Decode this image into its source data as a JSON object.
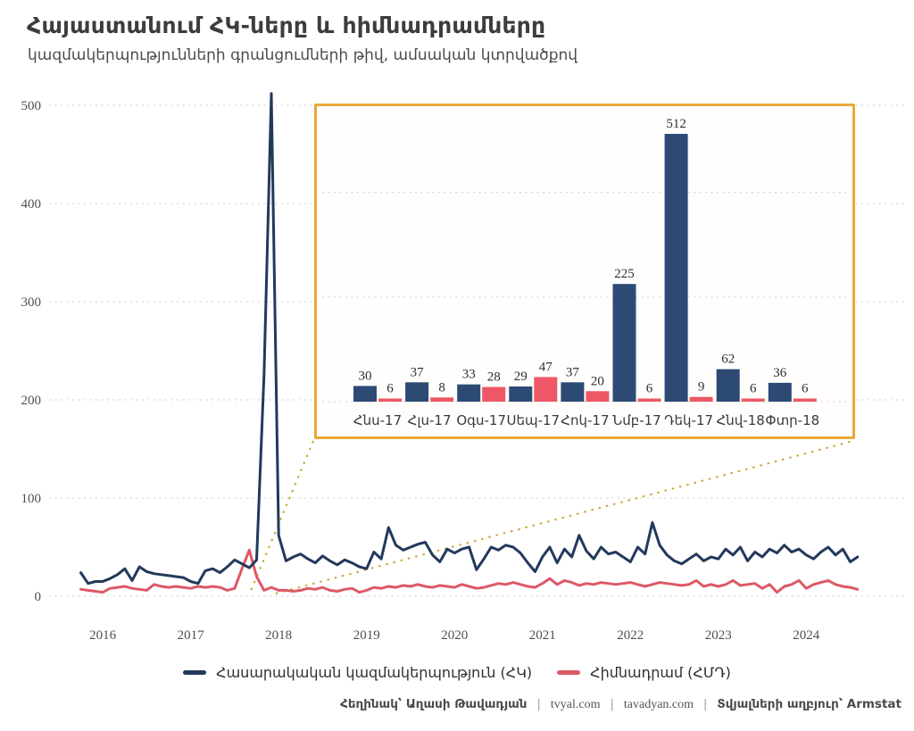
{
  "header": {
    "title": "Հայաստանում ՀԿ-ները և հիմնադրամները",
    "subtitle": "կազմակերպությունների գրանցումների թիվ, ամսական կտրվածքով"
  },
  "colors": {
    "ngo_line": "#22395c",
    "foundation_line": "#dd5966",
    "ngo_bar": "#2c4a74",
    "foundation_bar": "#ee5765",
    "grid": "#d7d7d7",
    "callout_border": "#e9a93b",
    "callout_dots": "#c9a62f",
    "title_text": "#3d3d3d"
  },
  "footer": {
    "author": "Հեղինակ՝ Աղասի Թավադյան",
    "separator": "|",
    "site1": "tvyal.com",
    "site2": "tavadyan.com",
    "source": "Տվյալների աղբյուր՝ Armstat"
  },
  "chart_data": [
    {
      "type": "line",
      "title": "Հայաստանում ՀԿ-ները և հիմնադրամները",
      "subtitle": "կազմակերպությունների գրանցումների թիվ, ամսական կտրվածքով",
      "xlabel": "",
      "ylabel": "",
      "ylim": [
        0,
        520
      ],
      "yticks": [
        0,
        100,
        200,
        300,
        400,
        500
      ],
      "xticks": [
        2016,
        2017,
        2018,
        2019,
        2020,
        2021,
        2022,
        2023,
        2024
      ],
      "grid": "horizontal-dashed",
      "legend_position": "bottom",
      "x": [
        "2015-10",
        "2015-11",
        "2015-12",
        "2016-01",
        "2016-02",
        "2016-03",
        "2016-04",
        "2016-05",
        "2016-06",
        "2016-07",
        "2016-08",
        "2016-09",
        "2016-10",
        "2016-11",
        "2016-12",
        "2017-01",
        "2017-02",
        "2017-03",
        "2017-04",
        "2017-05",
        "2017-06",
        "2017-07",
        "2017-08",
        "2017-09",
        "2017-10",
        "2017-11",
        "2017-12",
        "2018-01",
        "2018-02",
        "2018-03",
        "2018-04",
        "2018-05",
        "2018-06",
        "2018-07",
        "2018-08",
        "2018-09",
        "2018-10",
        "2018-11",
        "2018-12",
        "2019-01",
        "2019-02",
        "2019-03",
        "2019-04",
        "2019-05",
        "2019-06",
        "2019-07",
        "2019-08",
        "2019-09",
        "2019-10",
        "2019-11",
        "2019-12",
        "2020-01",
        "2020-02",
        "2020-03",
        "2020-04",
        "2020-05",
        "2020-06",
        "2020-07",
        "2020-08",
        "2020-09",
        "2020-10",
        "2020-11",
        "2020-12",
        "2021-01",
        "2021-02",
        "2021-03",
        "2021-04",
        "2021-05",
        "2021-06",
        "2021-07",
        "2021-08",
        "2021-09",
        "2021-10",
        "2021-11",
        "2021-12",
        "2022-01",
        "2022-02",
        "2022-03",
        "2022-04",
        "2022-05",
        "2022-06",
        "2022-07",
        "2022-08",
        "2022-09",
        "2022-10",
        "2022-11",
        "2022-12",
        "2023-01",
        "2023-02",
        "2023-03",
        "2023-04",
        "2023-05",
        "2023-06",
        "2023-07",
        "2023-08",
        "2023-09",
        "2023-10",
        "2023-11",
        "2023-12",
        "2024-01",
        "2024-02",
        "2024-03",
        "2024-04",
        "2024-05",
        "2024-06",
        "2024-07",
        "2024-08"
      ],
      "series": [
        {
          "name": "Հասարակական կազմակերպություն (ՀԿ)",
          "color": "#22395c",
          "values": [
            24,
            13,
            15,
            15,
            18,
            22,
            28,
            16,
            30,
            25,
            23,
            22,
            21,
            20,
            19,
            15,
            13,
            26,
            28,
            24,
            30,
            37,
            33,
            29,
            37,
            225,
            512,
            62,
            36,
            40,
            43,
            38,
            34,
            41,
            36,
            32,
            37,
            34,
            30,
            28,
            45,
            38,
            70,
            52,
            47,
            50,
            53,
            55,
            42,
            35,
            48,
            44,
            48,
            50,
            27,
            38,
            50,
            47,
            52,
            50,
            44,
            34,
            25,
            40,
            50,
            34,
            48,
            40,
            62,
            46,
            38,
            50,
            43,
            45,
            40,
            35,
            50,
            43,
            75,
            52,
            42,
            36,
            33,
            38,
            43,
            36,
            40,
            38,
            48,
            42,
            50,
            36,
            45,
            40,
            48,
            44,
            52,
            45,
            48,
            42,
            38,
            45,
            50,
            42,
            48,
            35,
            40
          ]
        },
        {
          "name": "Հիմնադրամ (ՀՄԴ)",
          "color": "#dd5966",
          "values": [
            7,
            6,
            5,
            4,
            8,
            9,
            10,
            8,
            7,
            6,
            12,
            10,
            9,
            10,
            9,
            8,
            10,
            9,
            10,
            9,
            6,
            8,
            28,
            47,
            20,
            6,
            9,
            6,
            6,
            5,
            6,
            8,
            7,
            9,
            6,
            5,
            7,
            8,
            4,
            6,
            9,
            8,
            10,
            9,
            11,
            10,
            12,
            10,
            9,
            11,
            10,
            9,
            12,
            10,
            8,
            9,
            11,
            13,
            12,
            14,
            12,
            10,
            9,
            13,
            18,
            12,
            16,
            14,
            11,
            13,
            12,
            14,
            13,
            12,
            13,
            14,
            12,
            10,
            12,
            14,
            13,
            12,
            11,
            12,
            16,
            10,
            12,
            10,
            12,
            16,
            11,
            12,
            13,
            8,
            12,
            4,
            10,
            12,
            16,
            8,
            12,
            14,
            16,
            12,
            10,
            9,
            7
          ]
        }
      ]
    },
    {
      "type": "bar",
      "title": "",
      "note": "zoom inset of Jun-2017 … Feb-2018",
      "categories": [
        "Հնս-17",
        "Հլս-17",
        "Օգս-17",
        "Սեպ-17",
        "Հոկ-17",
        "Նմբ-17",
        "Դեկ-17",
        "Հնվ-18",
        "Փտր-18"
      ],
      "series": [
        {
          "name": "Հասարակական կազմակերպություն (ՀԿ)",
          "color": "#2c4a74",
          "values": [
            30,
            37,
            33,
            29,
            37,
            225,
            512,
            62,
            36
          ]
        },
        {
          "name": "Հիմնադրամ (ՀՄԴ)",
          "color": "#ee5765",
          "values": [
            6,
            8,
            28,
            47,
            20,
            6,
            9,
            6,
            6
          ]
        }
      ],
      "value_labels": true,
      "ylim": [
        0,
        560
      ],
      "grid_levels": [
        0,
        200,
        400
      ]
    }
  ]
}
